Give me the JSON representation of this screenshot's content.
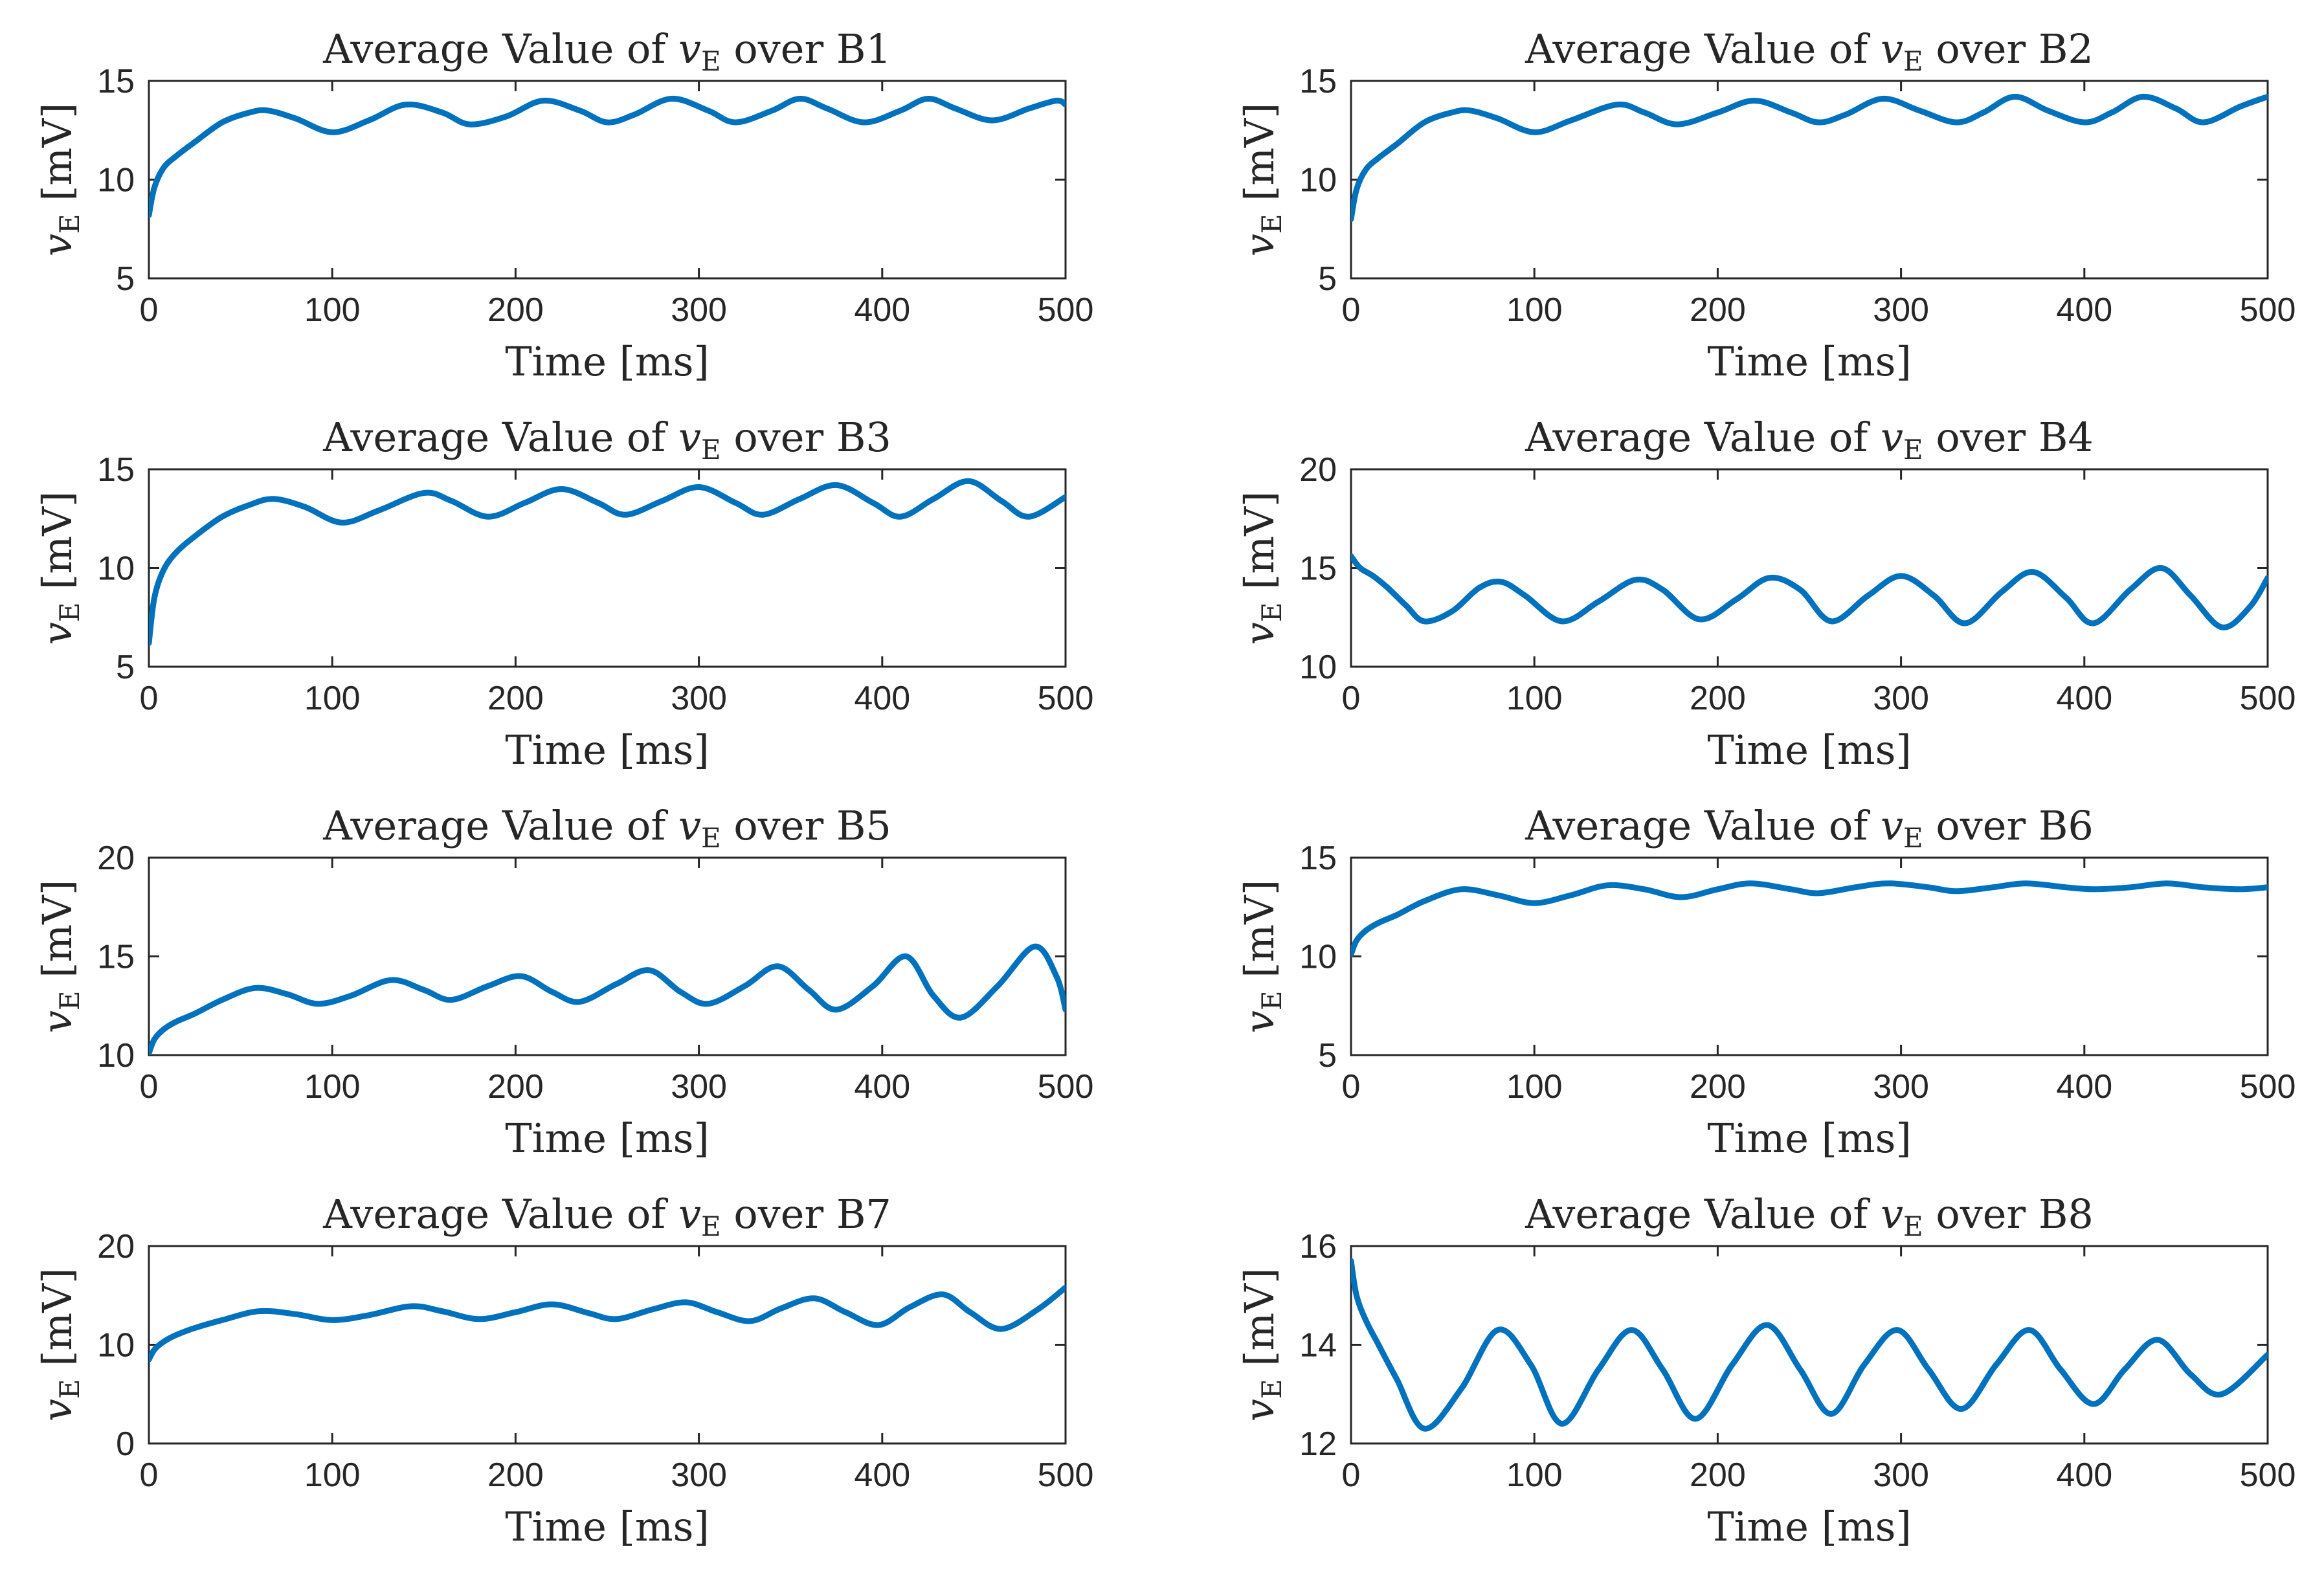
{
  "figure": {
    "title_prefix": "Average Value of ",
    "title_var": "v",
    "title_sub": "E",
    "title_mid": " over ",
    "ylabel_var": "v",
    "ylabel_sub": "E",
    "ylabel_unit": " [mV]",
    "xlabel": "Time [ms]"
  },
  "colors": {
    "line": "#0072BD",
    "axis": "#262626",
    "background": "#ffffff"
  },
  "chart_data": [
    {
      "type": "line",
      "region": "B1",
      "title": "Average Value of vE over B1",
      "xlabel": "Time [ms]",
      "ylabel": "vE [mV]",
      "xlim": [
        0,
        500
      ],
      "ylim": [
        5,
        15
      ],
      "xticks": [
        0,
        100,
        200,
        300,
        400,
        500
      ],
      "yticks": [
        5,
        10,
        15
      ],
      "x": [
        0,
        3,
        8,
        15,
        25,
        40,
        55,
        65,
        80,
        100,
        120,
        140,
        160,
        175,
        195,
        215,
        235,
        250,
        265,
        285,
        305,
        320,
        340,
        355,
        370,
        390,
        410,
        425,
        440,
        460,
        480,
        495,
        500
      ],
      "series": [
        {
          "name": "vE",
          "values": [
            8.2,
            9.6,
            10.6,
            11.2,
            11.9,
            12.9,
            13.4,
            13.5,
            13.1,
            12.4,
            13.0,
            13.8,
            13.4,
            12.8,
            13.2,
            14.0,
            13.5,
            12.9,
            13.3,
            14.1,
            13.5,
            12.9,
            13.5,
            14.1,
            13.6,
            12.9,
            13.5,
            14.1,
            13.6,
            13.0,
            13.6,
            14.0,
            13.8
          ]
        }
      ]
    },
    {
      "type": "line",
      "region": "B2",
      "title": "Average Value of vE over B2",
      "xlabel": "Time [ms]",
      "ylabel": "vE [mV]",
      "xlim": [
        0,
        500
      ],
      "ylim": [
        5,
        15
      ],
      "xticks": [
        0,
        100,
        200,
        300,
        400,
        500
      ],
      "yticks": [
        5,
        10,
        15
      ],
      "x": [
        0,
        3,
        8,
        15,
        25,
        40,
        55,
        65,
        80,
        100,
        120,
        145,
        160,
        178,
        200,
        220,
        240,
        255,
        270,
        290,
        310,
        330,
        345,
        362,
        380,
        400,
        415,
        432,
        450,
        465,
        485,
        500
      ],
      "series": [
        {
          "name": "vE",
          "values": [
            8.0,
            9.5,
            10.5,
            11.1,
            11.8,
            12.9,
            13.4,
            13.5,
            13.1,
            12.4,
            13.0,
            13.8,
            13.4,
            12.8,
            13.4,
            14.0,
            13.4,
            12.9,
            13.3,
            14.1,
            13.5,
            12.9,
            13.4,
            14.2,
            13.5,
            12.9,
            13.4,
            14.2,
            13.6,
            12.9,
            13.7,
            14.2
          ]
        }
      ]
    },
    {
      "type": "line",
      "region": "B3",
      "title": "Average Value of vE over B3",
      "xlabel": "Time [ms]",
      "ylabel": "vE [mV]",
      "xlim": [
        0,
        500
      ],
      "ylim": [
        5,
        15
      ],
      "xticks": [
        0,
        100,
        200,
        300,
        400,
        500
      ],
      "yticks": [
        5,
        10,
        15
      ],
      "x": [
        0,
        3,
        8,
        15,
        25,
        40,
        55,
        68,
        85,
        105,
        125,
        150,
        165,
        185,
        205,
        225,
        245,
        260,
        280,
        300,
        320,
        335,
        355,
        375,
        395,
        410,
        428,
        447,
        465,
        480,
        500
      ],
      "series": [
        {
          "name": "vE",
          "values": [
            6.2,
            8.5,
            9.9,
            10.8,
            11.6,
            12.6,
            13.2,
            13.5,
            13.1,
            12.3,
            12.9,
            13.8,
            13.4,
            12.6,
            13.3,
            14.0,
            13.3,
            12.7,
            13.4,
            14.1,
            13.3,
            12.7,
            13.5,
            14.2,
            13.3,
            12.6,
            13.5,
            14.4,
            13.4,
            12.6,
            13.6
          ]
        }
      ]
    },
    {
      "type": "line",
      "region": "B4",
      "title": "Average Value of vE over B4",
      "xlabel": "Time [ms]",
      "ylabel": "vE [mV]",
      "xlim": [
        0,
        500
      ],
      "ylim": [
        10,
        20
      ],
      "xticks": [
        0,
        100,
        200,
        300,
        400,
        500
      ],
      "yticks": [
        10,
        15,
        20
      ],
      "x": [
        0,
        5,
        12,
        20,
        30,
        40,
        55,
        70,
        82,
        95,
        115,
        135,
        155,
        170,
        190,
        210,
        228,
        245,
        262,
        282,
        300,
        318,
        335,
        355,
        372,
        390,
        405,
        425,
        442,
        458,
        475,
        490,
        500
      ],
      "series": [
        {
          "name": "vE",
          "values": [
            15.6,
            15.0,
            14.6,
            14.0,
            13.1,
            12.3,
            12.8,
            14.0,
            14.3,
            13.6,
            12.3,
            13.3,
            14.4,
            13.9,
            12.4,
            13.4,
            14.5,
            13.9,
            12.3,
            13.6,
            14.6,
            13.6,
            12.2,
            13.8,
            14.8,
            13.5,
            12.2,
            13.9,
            15.0,
            13.6,
            12.0,
            13.0,
            14.5
          ]
        }
      ]
    },
    {
      "type": "line",
      "region": "B5",
      "title": "Average Value of vE over B5",
      "xlabel": "Time [ms]",
      "ylabel": "vE [mV]",
      "xlim": [
        0,
        500
      ],
      "ylim": [
        10,
        20
      ],
      "xticks": [
        0,
        100,
        200,
        300,
        400,
        500
      ],
      "yticks": [
        10,
        15,
        20
      ],
      "x": [
        0,
        3,
        8,
        15,
        25,
        40,
        58,
        75,
        92,
        110,
        132,
        150,
        165,
        185,
        203,
        220,
        235,
        255,
        273,
        290,
        305,
        325,
        343,
        360,
        375,
        395,
        413,
        428,
        443,
        463,
        483,
        495,
        500
      ],
      "series": [
        {
          "name": "vE",
          "values": [
            10.1,
            10.8,
            11.3,
            11.7,
            12.1,
            12.8,
            13.4,
            13.1,
            12.6,
            13.0,
            13.8,
            13.3,
            12.8,
            13.5,
            14.0,
            13.2,
            12.7,
            13.6,
            14.3,
            13.2,
            12.6,
            13.5,
            14.5,
            13.3,
            12.3,
            13.5,
            15.0,
            13.0,
            11.9,
            13.5,
            15.5,
            14.0,
            12.3
          ]
        }
      ]
    },
    {
      "type": "line",
      "region": "B6",
      "title": "Average Value of vE over B6",
      "xlabel": "Time [ms]",
      "ylabel": "vE [mV]",
      "xlim": [
        0,
        500
      ],
      "ylim": [
        5,
        15
      ],
      "xticks": [
        0,
        100,
        200,
        300,
        400,
        500
      ],
      "yticks": [
        5,
        10,
        15
      ],
      "x": [
        0,
        3,
        8,
        15,
        25,
        40,
        60,
        80,
        100,
        120,
        140,
        160,
        180,
        200,
        218,
        240,
        255,
        275,
        293,
        315,
        330,
        350,
        368,
        390,
        405,
        425,
        445,
        465,
        485,
        500
      ],
      "series": [
        {
          "name": "vE",
          "values": [
            10.1,
            10.8,
            11.3,
            11.7,
            12.1,
            12.8,
            13.4,
            13.1,
            12.7,
            13.1,
            13.6,
            13.4,
            13.0,
            13.4,
            13.7,
            13.4,
            13.2,
            13.5,
            13.7,
            13.5,
            13.3,
            13.5,
            13.7,
            13.5,
            13.4,
            13.5,
            13.7,
            13.5,
            13.4,
            13.5
          ]
        }
      ]
    },
    {
      "type": "line",
      "region": "B7",
      "title": "Average Value of vE over B7",
      "xlabel": "Time [ms]",
      "ylabel": "vE [mV]",
      "xlim": [
        0,
        500
      ],
      "ylim": [
        0,
        20
      ],
      "xticks": [
        0,
        100,
        200,
        300,
        400,
        500
      ],
      "yticks": [
        0,
        10,
        20
      ],
      "x": [
        0,
        3,
        8,
        15,
        25,
        40,
        60,
        80,
        100,
        120,
        143,
        160,
        180,
        200,
        220,
        240,
        255,
        275,
        293,
        310,
        328,
        345,
        363,
        380,
        398,
        415,
        433,
        448,
        465,
        485,
        500
      ],
      "series": [
        {
          "name": "vE",
          "values": [
            8.5,
            9.5,
            10.3,
            11.0,
            11.7,
            12.5,
            13.4,
            13.1,
            12.5,
            13.0,
            13.9,
            13.4,
            12.6,
            13.3,
            14.1,
            13.2,
            12.6,
            13.6,
            14.3,
            13.3,
            12.4,
            13.7,
            14.7,
            13.3,
            12.0,
            13.8,
            15.1,
            13.3,
            11.6,
            13.6,
            15.8
          ]
        }
      ]
    },
    {
      "type": "line",
      "region": "B8",
      "title": "Average Value of vE over B8",
      "xlabel": "Time [ms]",
      "ylabel": "vE [mV]",
      "xlim": [
        0,
        500
      ],
      "ylim": [
        12,
        16
      ],
      "xticks": [
        0,
        100,
        200,
        300,
        400,
        500
      ],
      "yticks": [
        12,
        14,
        16
      ],
      "x": [
        0,
        3,
        8,
        15,
        25,
        40,
        60,
        80,
        98,
        115,
        135,
        153,
        170,
        188,
        208,
        227,
        245,
        262,
        280,
        298,
        315,
        333,
        352,
        370,
        387,
        405,
        422,
        440,
        458,
        475,
        500
      ],
      "series": [
        {
          "name": "vE",
          "values": [
            15.7,
            15.0,
            14.5,
            14.0,
            13.3,
            12.3,
            13.1,
            14.3,
            13.6,
            12.4,
            13.5,
            14.3,
            13.5,
            12.5,
            13.6,
            14.4,
            13.5,
            12.6,
            13.6,
            14.3,
            13.5,
            12.7,
            13.6,
            14.3,
            13.5,
            12.8,
            13.5,
            14.1,
            13.4,
            13.0,
            13.8
          ]
        }
      ]
    }
  ]
}
